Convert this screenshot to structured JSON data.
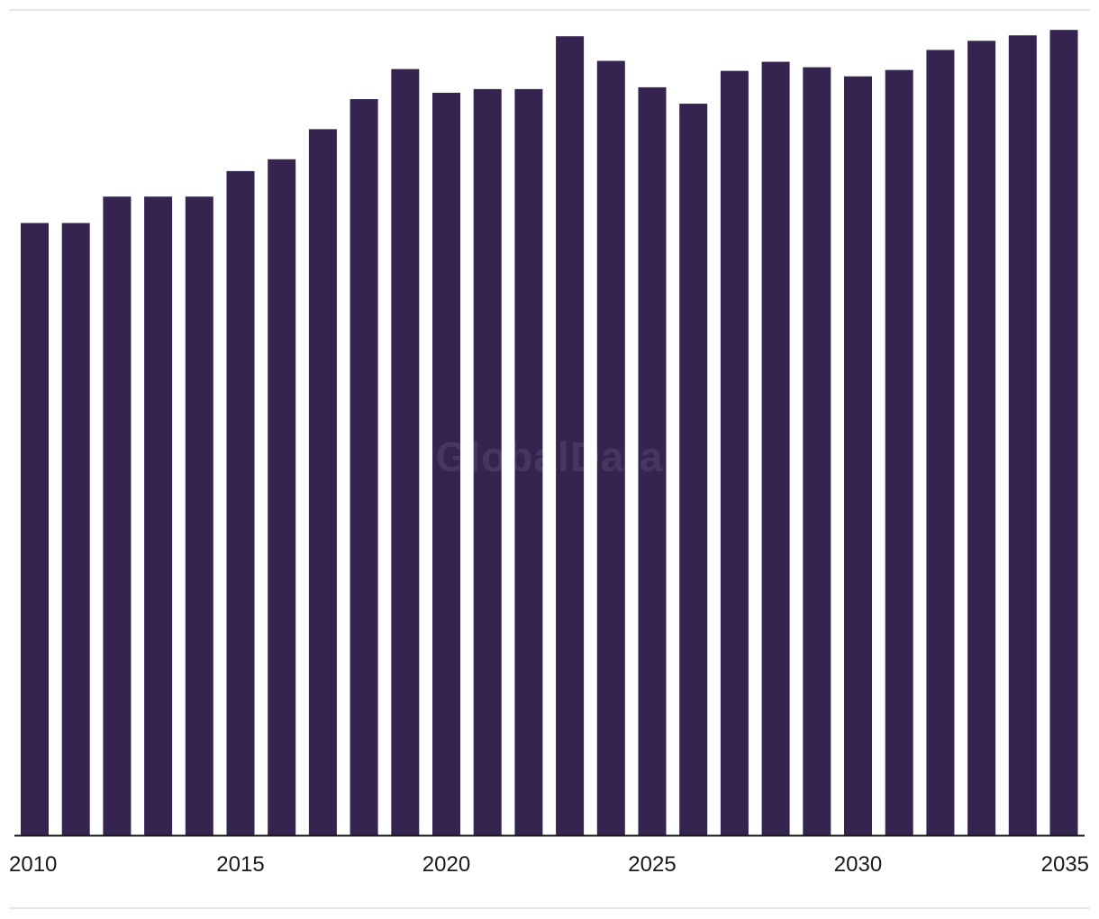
{
  "chart_data": {
    "type": "bar",
    "title": "",
    "xlabel": "",
    "ylabel": "",
    "categories": [
      "2010",
      "2011",
      "2012",
      "2013",
      "2014",
      "2015",
      "2016",
      "2017",
      "2018",
      "2019",
      "2020",
      "2021",
      "2022",
      "2023",
      "2024",
      "2025",
      "2026",
      "2027",
      "2028",
      "2029",
      "2030",
      "2031",
      "2032",
      "2033",
      "2034",
      "2035"
    ],
    "x_tick_labels": [
      "2010",
      "2015",
      "2020",
      "2025",
      "2030",
      "2035"
    ],
    "values": [
      672,
      672,
      701,
      701,
      701,
      729,
      742,
      775,
      808,
      841,
      815,
      819,
      819,
      877,
      850,
      821,
      803,
      839,
      849,
      843,
      833,
      840,
      862,
      872,
      878,
      884
    ],
    "ylim": [
      0,
      900
    ],
    "y_axis_visible": false,
    "grid": false,
    "legend": "none",
    "bar_color": "#352350",
    "axis_color": "#1a1a1a"
  },
  "watermark": "GlobalData"
}
